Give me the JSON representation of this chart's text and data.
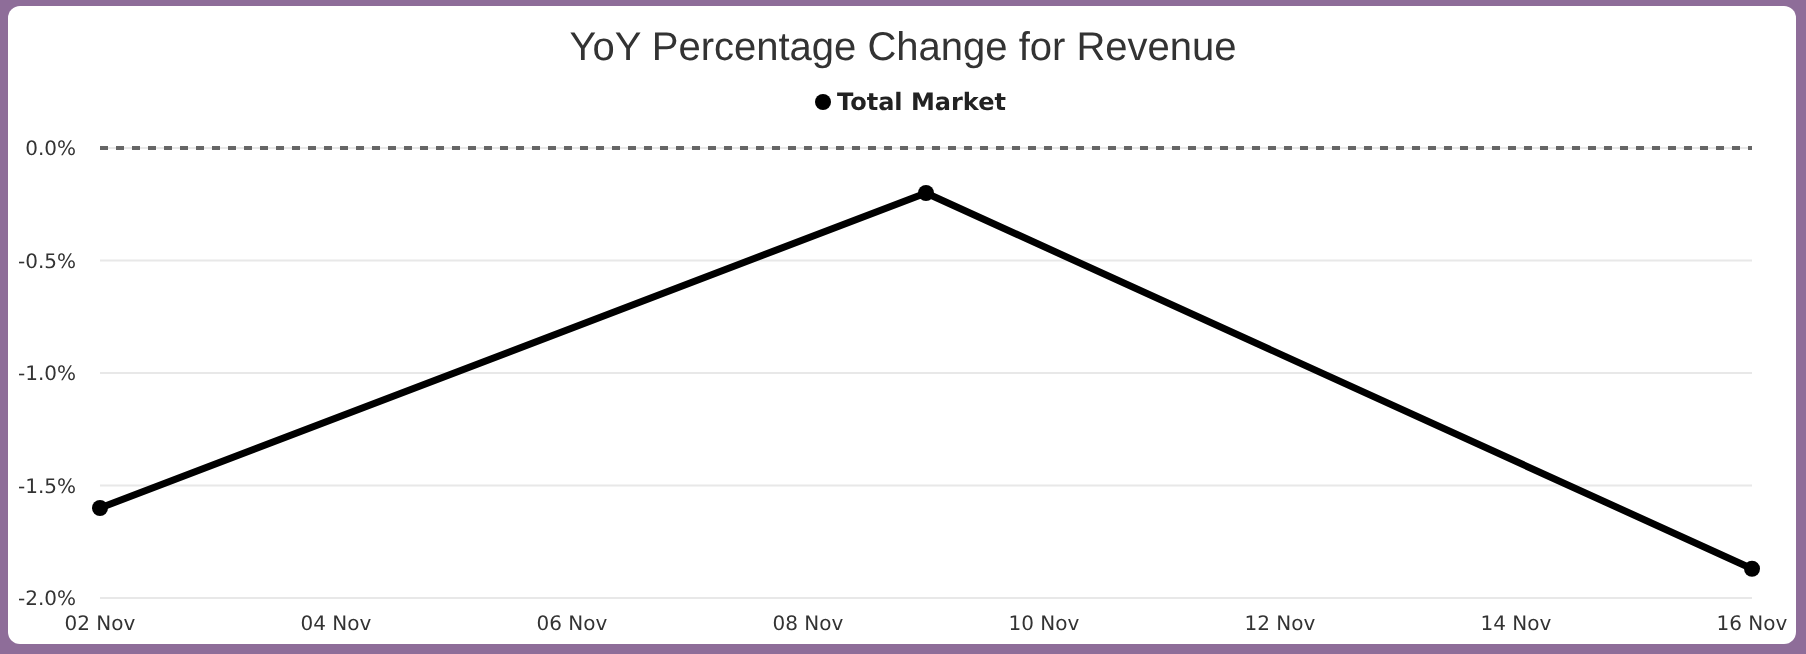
{
  "chart_data": {
    "type": "line",
    "title": "YoY Percentage Change for Revenue",
    "x": [
      "--11-02",
      "--11-09",
      "--11-16"
    ],
    "series": [
      {
        "name": "Total Market",
        "color": "#000000",
        "values": [
          -1.6,
          -0.2,
          -1.87
        ]
      }
    ],
    "xlim": [
      "--11-02",
      "--11-16"
    ],
    "xticks": [
      {
        "value": "--11-02",
        "label": "02 Nov"
      },
      {
        "value": "--11-04",
        "label": "04 Nov"
      },
      {
        "value": "--11-06",
        "label": "06 Nov"
      },
      {
        "value": "--11-08",
        "label": "08 Nov"
      },
      {
        "value": "--11-10",
        "label": "10 Nov"
      },
      {
        "value": "--11-12",
        "label": "12 Nov"
      },
      {
        "value": "--11-14",
        "label": "14 Nov"
      },
      {
        "value": "--11-16",
        "label": "16 Nov"
      }
    ],
    "ylim": [
      -2,
      0
    ],
    "yticks": [
      {
        "value": 0,
        "label": "0.0%"
      },
      {
        "value": -0.5,
        "label": "-0.5%"
      },
      {
        "value": -1,
        "label": "-1.0%"
      },
      {
        "value": -1.5,
        "label": "-1.5%"
      },
      {
        "value": -2,
        "label": "-2.0%"
      }
    ],
    "grid": "y",
    "legend": "top",
    "marker": "circle",
    "line_style": "solid",
    "ref_lines": [
      {
        "axis": "y",
        "value": 0,
        "color": "#666666",
        "line_style": "dashed"
      }
    ]
  }
}
